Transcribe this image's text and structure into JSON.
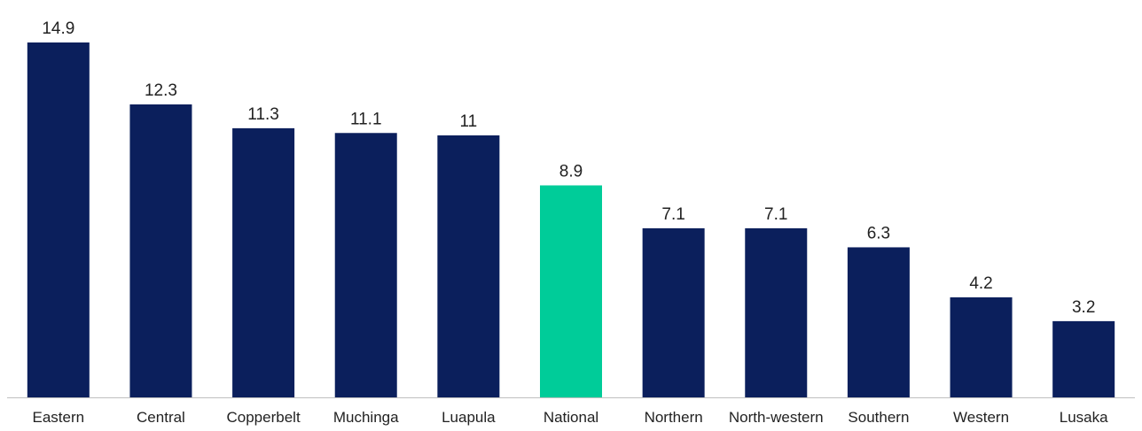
{
  "chart_data": {
    "type": "bar",
    "categories": [
      "Eastern",
      "Central",
      "Copperbelt",
      "Muchinga",
      "Luapula",
      "National",
      "Northern",
      "North-western",
      "Southern",
      "Western",
      "Lusaka"
    ],
    "values": [
      14.9,
      12.3,
      11.3,
      11.1,
      11,
      8.9,
      7.1,
      7.1,
      6.3,
      4.2,
      3.2
    ],
    "value_labels": [
      "14.9",
      "12.3",
      "11.3",
      "11.1",
      "11",
      "8.9",
      "7.1",
      "7.1",
      "6.3",
      "4.2",
      "3.2"
    ],
    "highlight_category": "National",
    "colors": {
      "bar": "#0b1f5c",
      "highlight": "#00cc99",
      "axis": "#bfbfbf"
    },
    "title": "",
    "xlabel": "",
    "ylabel": "",
    "ylim": [
      0,
      16
    ],
    "grid": false,
    "legend": "none"
  }
}
